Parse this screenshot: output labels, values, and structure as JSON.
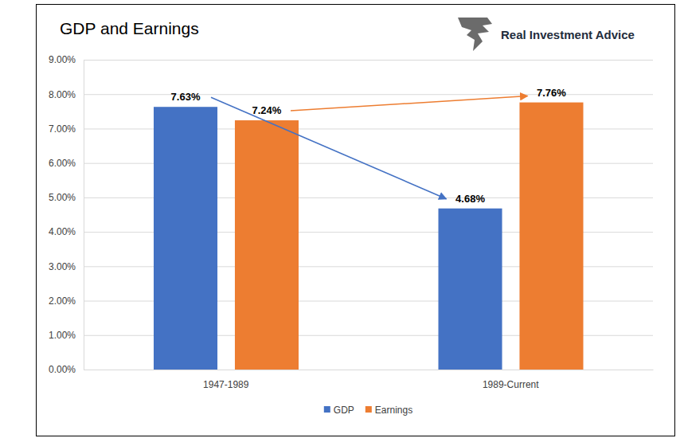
{
  "chart_data": {
    "type": "bar",
    "title": "GDP and Earnings",
    "annotations": [
      "Real Investment Advice"
    ],
    "categories": [
      "1947-1989",
      "1989-Current"
    ],
    "series": [
      {
        "name": "GDP",
        "color": "#4472c4",
        "values": [
          7.63,
          4.68
        ],
        "value_labels": [
          "7.63%",
          "4.68%"
        ]
      },
      {
        "name": "Earnings",
        "color": "#ed7d31",
        "values": [
          7.24,
          7.76
        ],
        "value_labels": [
          "7.24%",
          "7.76%"
        ]
      }
    ],
    "ylim": [
      0,
      9
    ],
    "yticks": [
      {
        "value": 0,
        "label": "0.00%"
      },
      {
        "value": 1,
        "label": "1.00%"
      },
      {
        "value": 2,
        "label": "2.00%"
      },
      {
        "value": 3,
        "label": "3.00%"
      },
      {
        "value": 4,
        "label": "4.00%"
      },
      {
        "value": 5,
        "label": "5.00%"
      },
      {
        "value": 6,
        "label": "6.00%"
      },
      {
        "value": 7,
        "label": "7.00%"
      },
      {
        "value": 8,
        "label": "8.00%"
      },
      {
        "value": 9,
        "label": "9.00%"
      }
    ],
    "grid": true,
    "legend": "bottom",
    "data_labels": true
  }
}
